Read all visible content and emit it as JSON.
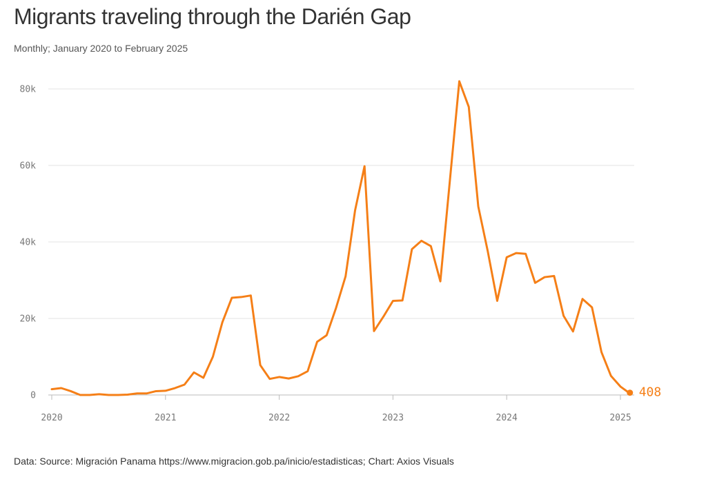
{
  "title": "Migrants traveling through the Darién Gap",
  "subtitle": "Monthly; January 2020 to February 2025",
  "source": "Data: Source: Migración Panama https://www.migracion.gob.pa/inicio/estadisticas; Chart: Axios Visuals",
  "colors": {
    "line": "#f57f17",
    "grid": "#e3e3e3",
    "axis": "#bbbbbb",
    "tick_text": "#777777"
  },
  "chart_data": {
    "type": "line",
    "title": "Migrants traveling through the Darién Gap",
    "subtitle": "Monthly; January 2020 to February 2025",
    "xlabel": "",
    "ylabel": "",
    "ylim": [
      0,
      80000
    ],
    "y_ticks": [
      {
        "value": 0,
        "label": "0"
      },
      {
        "value": 20000,
        "label": "20k"
      },
      {
        "value": 40000,
        "label": "40k"
      },
      {
        "value": 60000,
        "label": "60k"
      },
      {
        "value": 80000,
        "label": "80k"
      }
    ],
    "x_ticks": [
      {
        "value": 2020,
        "label": "2020"
      },
      {
        "value": 2021,
        "label": "2021"
      },
      {
        "value": 2022,
        "label": "2022"
      },
      {
        "value": 2023,
        "label": "2023"
      },
      {
        "value": 2024,
        "label": "2024"
      },
      {
        "value": 2025,
        "label": "2025"
      }
    ],
    "grid": true,
    "series": [
      {
        "name": "Migrants",
        "start": "2020-01",
        "values": [
          1500,
          1800,
          1000,
          0,
          0,
          200,
          0,
          0,
          100,
          400,
          400,
          1000,
          1100,
          1800,
          2700,
          5900,
          4500,
          10000,
          19000,
          25400,
          25600,
          26000,
          7800,
          4200,
          4700,
          4300,
          4900,
          6200,
          13900,
          15600,
          22800,
          31000,
          48200,
          59800,
          16700,
          20500,
          24600,
          24700,
          38100,
          40300,
          38900,
          29700,
          55900,
          82000,
          75300,
          49300,
          37600,
          24600,
          36000,
          37100,
          36900,
          29300,
          30800,
          31100,
          20700,
          16600,
          25100,
          22900,
          11200,
          5000,
          2200,
          408
        ]
      }
    ],
    "end_label": "408"
  }
}
